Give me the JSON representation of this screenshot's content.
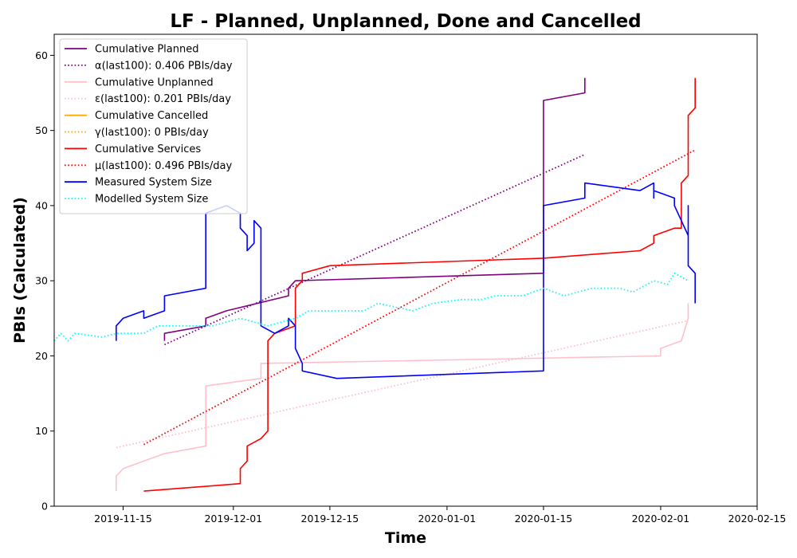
{
  "chart_data": {
    "type": "line",
    "title": "LF - Planned, Unplanned, Done  and Cancelled",
    "xlabel": "Time",
    "ylabel": "PBIs (Calculated)",
    "x_axis_type": "date",
    "xlim": [
      "2019-11-05",
      "2020-02-15"
    ],
    "ylim": [
      0,
      62.8
    ],
    "x_ticks": [
      "2019-11-15",
      "2019-12-01",
      "2019-12-15",
      "2020-01-01",
      "2020-01-15",
      "2020-02-01",
      "2020-02-15"
    ],
    "y_ticks": [
      0,
      10,
      20,
      30,
      40,
      50,
      60
    ],
    "grid": false,
    "legend_position": "top-left",
    "series": [
      {
        "name": "Cumulative Planned",
        "color": "#800080",
        "style": "solid",
        "points": [
          [
            "2019-11-21",
            22
          ],
          [
            "2019-11-21",
            23
          ],
          [
            "2019-11-27",
            24
          ],
          [
            "2019-11-27",
            25
          ],
          [
            "2019-11-30",
            26
          ],
          [
            "2019-12-09",
            28
          ],
          [
            "2019-12-09",
            29
          ],
          [
            "2019-12-10",
            30
          ],
          [
            "2020-01-15",
            31
          ],
          [
            "2020-01-15",
            54
          ],
          [
            "2020-01-21",
            55
          ],
          [
            "2020-01-21",
            57
          ]
        ]
      },
      {
        "name": "α(last100): 0.406 PBIs/day",
        "color": "#800080",
        "style": "dotted",
        "points": [
          [
            "2019-11-21",
            21.5
          ],
          [
            "2020-01-21",
            46.8
          ]
        ]
      },
      {
        "name": "Cumulative Unplanned",
        "color": "#ffc0cb",
        "style": "solid",
        "points": [
          [
            "2019-11-14",
            2
          ],
          [
            "2019-11-14",
            4
          ],
          [
            "2019-11-15",
            5
          ],
          [
            "2019-11-18",
            6
          ],
          [
            "2019-11-21",
            7
          ],
          [
            "2019-11-27",
            8
          ],
          [
            "2019-11-27",
            16
          ],
          [
            "2019-12-05",
            17
          ],
          [
            "2019-12-05",
            19
          ],
          [
            "2020-02-01",
            20
          ],
          [
            "2020-02-01",
            21
          ],
          [
            "2020-02-04",
            22
          ],
          [
            "2020-02-05",
            25
          ],
          [
            "2020-02-05",
            27
          ]
        ]
      },
      {
        "name": "ε(last100): 0.201 PBIs/day",
        "color": "#ffc0cb",
        "style": "dotted",
        "points": [
          [
            "2019-11-14",
            7.8
          ],
          [
            "2020-02-05",
            24.7
          ]
        ]
      },
      {
        "name": "Cumulative Cancelled",
        "color": "#ffa500",
        "style": "solid",
        "points": []
      },
      {
        "name": "γ(last100): 0 PBIs/day",
        "color": "#ffa500",
        "style": "dotted",
        "points": []
      },
      {
        "name": "Cumulative Services",
        "color": "#ff0000",
        "style": "solid",
        "points": [
          [
            "2019-11-18",
            2
          ],
          [
            "2019-12-02",
            3
          ],
          [
            "2019-12-02",
            5
          ],
          [
            "2019-12-03",
            6
          ],
          [
            "2019-12-03",
            8
          ],
          [
            "2019-12-05",
            9
          ],
          [
            "2019-12-06",
            10
          ],
          [
            "2019-12-06",
            22
          ],
          [
            "2019-12-07",
            23
          ],
          [
            "2019-12-10",
            24
          ],
          [
            "2019-12-10",
            28
          ],
          [
            "2019-12-10",
            29
          ],
          [
            "2019-12-11",
            30
          ],
          [
            "2019-12-11",
            31
          ],
          [
            "2019-12-15",
            32
          ],
          [
            "2020-01-15",
            33
          ],
          [
            "2020-01-29",
            34
          ],
          [
            "2020-01-31",
            35
          ],
          [
            "2020-01-31",
            36
          ],
          [
            "2020-02-03",
            37
          ],
          [
            "2020-02-04",
            37
          ],
          [
            "2020-02-04",
            43
          ],
          [
            "2020-02-05",
            44
          ],
          [
            "2020-02-05",
            48
          ],
          [
            "2020-02-05",
            52
          ],
          [
            "2020-02-06",
            53
          ],
          [
            "2020-02-06",
            55
          ],
          [
            "2020-02-06",
            57
          ]
        ]
      },
      {
        "name": "μ(last100): 0.496 PBIs/day",
        "color": "#ff0000",
        "style": "dotted",
        "points": [
          [
            "2019-11-18",
            8.2
          ],
          [
            "2020-02-06",
            47.4
          ]
        ]
      },
      {
        "name": "Measured System Size",
        "color": "#0000ff",
        "style": "solid",
        "points": [
          [
            "2019-11-14",
            22
          ],
          [
            "2019-11-14",
            24
          ],
          [
            "2019-11-15",
            25
          ],
          [
            "2019-11-18",
            26
          ],
          [
            "2019-11-18",
            25
          ],
          [
            "2019-11-21",
            26
          ],
          [
            "2019-11-21",
            28
          ],
          [
            "2019-11-27",
            29
          ],
          [
            "2019-11-27",
            39
          ],
          [
            "2019-11-30",
            40
          ],
          [
            "2019-12-02",
            39
          ],
          [
            "2019-12-02",
            37
          ],
          [
            "2019-12-03",
            36
          ],
          [
            "2019-12-03",
            34
          ],
          [
            "2019-12-04",
            35
          ],
          [
            "2019-12-04",
            38
          ],
          [
            "2019-12-05",
            37
          ],
          [
            "2019-12-05",
            24
          ],
          [
            "2019-12-07",
            23
          ],
          [
            "2019-12-09",
            24
          ],
          [
            "2019-12-09",
            25
          ],
          [
            "2019-12-10",
            24
          ],
          [
            "2019-12-10",
            21
          ],
          [
            "2019-12-11",
            19
          ],
          [
            "2019-12-11",
            18
          ],
          [
            "2019-12-16",
            17
          ],
          [
            "2020-01-15",
            18
          ],
          [
            "2020-01-15",
            25
          ],
          [
            "2020-01-15",
            40
          ],
          [
            "2020-01-21",
            41
          ],
          [
            "2020-01-21",
            43
          ],
          [
            "2020-01-29",
            42
          ],
          [
            "2020-01-31",
            43
          ],
          [
            "2020-01-31",
            41
          ],
          [
            "2020-01-31",
            42
          ],
          [
            "2020-02-03",
            41
          ],
          [
            "2020-02-03",
            40
          ],
          [
            "2020-02-04",
            38
          ],
          [
            "2020-02-05",
            36
          ],
          [
            "2020-02-05",
            40
          ],
          [
            "2020-02-05",
            32
          ],
          [
            "2020-02-06",
            31
          ],
          [
            "2020-02-06",
            27
          ]
        ]
      },
      {
        "name": "Modelled System Size",
        "color": "#00ffff",
        "style": "dotted",
        "points": [
          [
            "2019-11-05",
            22
          ],
          [
            "2019-11-06",
            23
          ],
          [
            "2019-11-07",
            22
          ],
          [
            "2019-11-08",
            23
          ],
          [
            "2019-11-12",
            22.5
          ],
          [
            "2019-11-14",
            23
          ],
          [
            "2019-11-18",
            23
          ],
          [
            "2019-11-20",
            24
          ],
          [
            "2019-11-25",
            24
          ],
          [
            "2019-11-28",
            24
          ],
          [
            "2019-12-02",
            25
          ],
          [
            "2019-12-06",
            24
          ],
          [
            "2019-12-10",
            25
          ],
          [
            "2019-12-12",
            26
          ],
          [
            "2019-12-15",
            26
          ],
          [
            "2019-12-20",
            26
          ],
          [
            "2019-12-22",
            27
          ],
          [
            "2019-12-27",
            26
          ],
          [
            "2019-12-30",
            27
          ],
          [
            "2020-01-03",
            27.5
          ],
          [
            "2020-01-06",
            27.5
          ],
          [
            "2020-01-08",
            28
          ],
          [
            "2020-01-12",
            28
          ],
          [
            "2020-01-15",
            29
          ],
          [
            "2020-01-18",
            28
          ],
          [
            "2020-01-22",
            29
          ],
          [
            "2020-01-26",
            29
          ],
          [
            "2020-01-28",
            28.5
          ],
          [
            "2020-01-31",
            30
          ],
          [
            "2020-02-02",
            29.5
          ],
          [
            "2020-02-03",
            31
          ],
          [
            "2020-02-05",
            30
          ]
        ]
      }
    ]
  }
}
